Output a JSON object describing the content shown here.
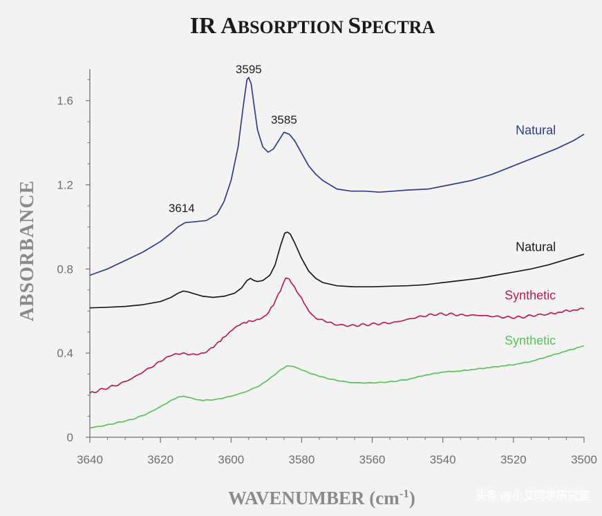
{
  "chart_data": {
    "type": "line",
    "title_parts": [
      {
        "text": "IR ",
        "size": "big"
      },
      {
        "text": "A",
        "size": "big"
      },
      {
        "text": "BSORPTION ",
        "size": "small"
      },
      {
        "text": "S",
        "size": "big"
      },
      {
        "text": "PECTRA",
        "size": "small"
      }
    ],
    "title": "IR Absorption Spectra",
    "xlabel": "WAVENUMBER (cm",
    "xlabel_sup": "-1",
    "xlabel_close": ")",
    "ylabel": "ABSORBANCE",
    "xlim": [
      3640,
      3500
    ],
    "ylim": [
      0,
      1.75
    ],
    "x_ticks": [
      3640,
      3620,
      3600,
      3580,
      3560,
      3540,
      3520,
      3500
    ],
    "y_ticks": [
      {
        "value": 0,
        "label": "0"
      },
      {
        "value": 0.4,
        "label": "0.4"
      },
      {
        "value": 0.8,
        "label": "0.8"
      },
      {
        "value": 1.2,
        "label": "1.2"
      },
      {
        "value": 1.6,
        "label": "1.6"
      }
    ],
    "annotations": [
      {
        "text": "3614",
        "x": 3614,
        "y": 1.07
      },
      {
        "text": "3595",
        "x": 3595,
        "y": 1.73
      },
      {
        "text": "3585",
        "x": 3585,
        "y": 1.49
      }
    ],
    "series": [
      {
        "name": "Natural",
        "color": "#2e3a8c",
        "noise": 0,
        "label_at": {
          "x": 3508,
          "y": 1.44
        },
        "points": [
          [
            3640,
            0.77
          ],
          [
            3635,
            0.8
          ],
          [
            3630,
            0.84
          ],
          [
            3625,
            0.88
          ],
          [
            3620,
            0.93
          ],
          [
            3617,
            0.97
          ],
          [
            3615,
            1.0
          ],
          [
            3613,
            1.02
          ],
          [
            3610,
            1.025
          ],
          [
            3607,
            1.03
          ],
          [
            3604,
            1.06
          ],
          [
            3602,
            1.12
          ],
          [
            3600,
            1.22
          ],
          [
            3598,
            1.38
          ],
          [
            3596.5,
            1.58
          ],
          [
            3595.5,
            1.7
          ],
          [
            3595,
            1.71
          ],
          [
            3594.3,
            1.68
          ],
          [
            3593.5,
            1.58
          ],
          [
            3592.5,
            1.46
          ],
          [
            3591,
            1.38
          ],
          [
            3589.5,
            1.355
          ],
          [
            3588,
            1.37
          ],
          [
            3586.5,
            1.41
          ],
          [
            3585,
            1.45
          ],
          [
            3583.5,
            1.44
          ],
          [
            3582,
            1.41
          ],
          [
            3580,
            1.35
          ],
          [
            3578,
            1.29
          ],
          [
            3576,
            1.25
          ],
          [
            3574,
            1.22
          ],
          [
            3572,
            1.2
          ],
          [
            3570,
            1.18
          ],
          [
            3566,
            1.17
          ],
          [
            3562,
            1.17
          ],
          [
            3558,
            1.165
          ],
          [
            3554,
            1.17
          ],
          [
            3550,
            1.175
          ],
          [
            3544,
            1.18
          ],
          [
            3538,
            1.2
          ],
          [
            3532,
            1.22
          ],
          [
            3526,
            1.25
          ],
          [
            3520,
            1.29
          ],
          [
            3514,
            1.33
          ],
          [
            3508,
            1.37
          ],
          [
            3503,
            1.41
          ],
          [
            3500,
            1.44
          ]
        ]
      },
      {
        "name": "Natural",
        "color": "#1a1a1a",
        "noise": 0,
        "label_at": {
          "x": 3508,
          "y": 0.885
        },
        "points": [
          [
            3640,
            0.615
          ],
          [
            3635,
            0.618
          ],
          [
            3630,
            0.622
          ],
          [
            3625,
            0.63
          ],
          [
            3620,
            0.645
          ],
          [
            3617,
            0.665
          ],
          [
            3615,
            0.685
          ],
          [
            3613.5,
            0.695
          ],
          [
            3612,
            0.69
          ],
          [
            3610,
            0.68
          ],
          [
            3608,
            0.67
          ],
          [
            3605,
            0.665
          ],
          [
            3602,
            0.67
          ],
          [
            3599,
            0.685
          ],
          [
            3597,
            0.71
          ],
          [
            3595.5,
            0.745
          ],
          [
            3594.5,
            0.755
          ],
          [
            3593.5,
            0.745
          ],
          [
            3592.5,
            0.74
          ],
          [
            3591,
            0.745
          ],
          [
            3589,
            0.77
          ],
          [
            3587.5,
            0.82
          ],
          [
            3586,
            0.91
          ],
          [
            3584.8,
            0.97
          ],
          [
            3584,
            0.975
          ],
          [
            3583.2,
            0.965
          ],
          [
            3582,
            0.925
          ],
          [
            3580,
            0.85
          ],
          [
            3578,
            0.79
          ],
          [
            3576,
            0.755
          ],
          [
            3574,
            0.735
          ],
          [
            3570,
            0.72
          ],
          [
            3565,
            0.715
          ],
          [
            3560,
            0.715
          ],
          [
            3555,
            0.718
          ],
          [
            3550,
            0.72
          ],
          [
            3545,
            0.725
          ],
          [
            3540,
            0.735
          ],
          [
            3535,
            0.745
          ],
          [
            3530,
            0.755
          ],
          [
            3525,
            0.77
          ],
          [
            3520,
            0.785
          ],
          [
            3515,
            0.8
          ],
          [
            3510,
            0.82
          ],
          [
            3505,
            0.845
          ],
          [
            3500,
            0.87
          ]
        ]
      },
      {
        "name": "Synthetic",
        "color": "#b81e4a",
        "noise": 0.006,
        "label_at": {
          "x": 3508,
          "y": 0.655
        },
        "points": [
          [
            3640,
            0.21
          ],
          [
            3636,
            0.23
          ],
          [
            3632,
            0.25
          ],
          [
            3628,
            0.28
          ],
          [
            3624,
            0.32
          ],
          [
            3620,
            0.36
          ],
          [
            3617,
            0.39
          ],
          [
            3614,
            0.4
          ],
          [
            3611,
            0.395
          ],
          [
            3608,
            0.4
          ],
          [
            3605,
            0.43
          ],
          [
            3603,
            0.46
          ],
          [
            3601,
            0.49
          ],
          [
            3599,
            0.52
          ],
          [
            3597,
            0.54
          ],
          [
            3595,
            0.55
          ],
          [
            3592,
            0.56
          ],
          [
            3590,
            0.58
          ],
          [
            3588,
            0.63
          ],
          [
            3586,
            0.7
          ],
          [
            3584.5,
            0.76
          ],
          [
            3583.5,
            0.75
          ],
          [
            3582,
            0.71
          ],
          [
            3580,
            0.66
          ],
          [
            3578,
            0.6
          ],
          [
            3576,
            0.565
          ],
          [
            3573,
            0.55
          ],
          [
            3570,
            0.535
          ],
          [
            3566,
            0.53
          ],
          [
            3562,
            0.535
          ],
          [
            3558,
            0.54
          ],
          [
            3554,
            0.545
          ],
          [
            3550,
            0.56
          ],
          [
            3546,
            0.575
          ],
          [
            3542,
            0.585
          ],
          [
            3538,
            0.585
          ],
          [
            3534,
            0.58
          ],
          [
            3530,
            0.58
          ],
          [
            3526,
            0.575
          ],
          [
            3522,
            0.57
          ],
          [
            3518,
            0.57
          ],
          [
            3514,
            0.58
          ],
          [
            3510,
            0.585
          ],
          [
            3505,
            0.6
          ],
          [
            3500,
            0.61
          ]
        ]
      },
      {
        "name": "Synthetic",
        "color": "#5cbf5a",
        "noise": 0.002,
        "label_at": {
          "x": 3508,
          "y": 0.44
        },
        "points": [
          [
            3640,
            0.045
          ],
          [
            3636,
            0.055
          ],
          [
            3632,
            0.07
          ],
          [
            3628,
            0.085
          ],
          [
            3624,
            0.11
          ],
          [
            3620,
            0.145
          ],
          [
            3617,
            0.175
          ],
          [
            3615,
            0.19
          ],
          [
            3613.5,
            0.195
          ],
          [
            3612,
            0.19
          ],
          [
            3610,
            0.18
          ],
          [
            3608,
            0.175
          ],
          [
            3604,
            0.18
          ],
          [
            3600,
            0.195
          ],
          [
            3596,
            0.215
          ],
          [
            3592,
            0.245
          ],
          [
            3589,
            0.28
          ],
          [
            3586,
            0.32
          ],
          [
            3584,
            0.34
          ],
          [
            3582,
            0.335
          ],
          [
            3580,
            0.32
          ],
          [
            3577,
            0.3
          ],
          [
            3574,
            0.285
          ],
          [
            3570,
            0.27
          ],
          [
            3566,
            0.26
          ],
          [
            3562,
            0.258
          ],
          [
            3558,
            0.26
          ],
          [
            3554,
            0.265
          ],
          [
            3550,
            0.275
          ],
          [
            3545,
            0.295
          ],
          [
            3540,
            0.31
          ],
          [
            3535,
            0.315
          ],
          [
            3530,
            0.325
          ],
          [
            3525,
            0.335
          ],
          [
            3520,
            0.345
          ],
          [
            3515,
            0.36
          ],
          [
            3510,
            0.385
          ],
          [
            3505,
            0.41
          ],
          [
            3500,
            0.435
          ]
        ]
      }
    ]
  },
  "watermark": "头条 @小艾同学研究室"
}
